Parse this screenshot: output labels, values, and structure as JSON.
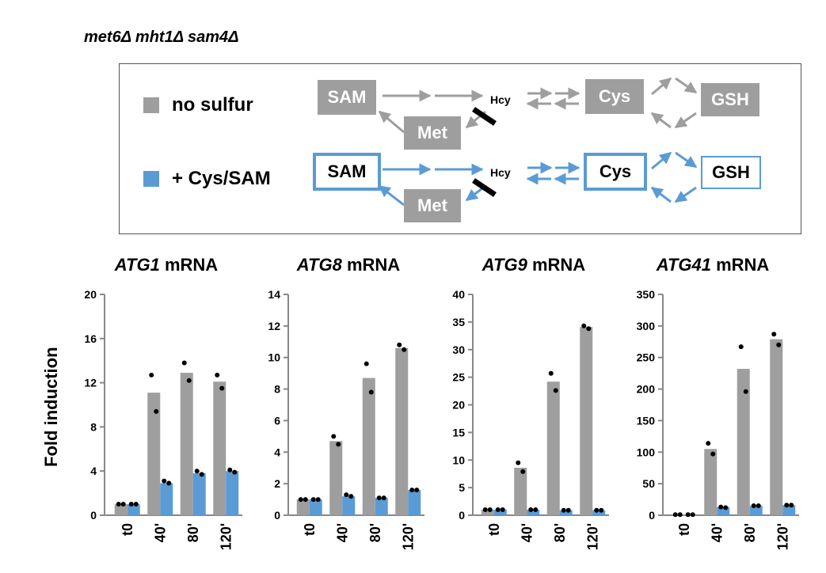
{
  "strain_label": "met6Δ mht1Δ sam4Δ",
  "legend": {
    "items": [
      {
        "label": "no sulfur",
        "color": "#9e9e9e"
      },
      {
        "label": "+ Cys/SAM",
        "color": "#5b9bd5"
      }
    ]
  },
  "pathway": {
    "row1": {
      "sam": "SAM",
      "met": "Met",
      "hcy": "Hcy",
      "cys": "Cys",
      "gsh": "GSH"
    },
    "row2": {
      "sam": "SAM",
      "met": "Met",
      "hcy": "Hcy",
      "cys": "Cys",
      "gsh": "GSH"
    }
  },
  "colors": {
    "grey": "#9e9e9e",
    "blue": "#5b9bd5",
    "axis": "#888888",
    "dot": "#000000"
  },
  "y_axis_label": "Fold induction",
  "chart_data": [
    {
      "type": "bar",
      "title_gene": "ATG1",
      "title_suffix": " mRNA",
      "categories": [
        "t0",
        "40'",
        "80'",
        "120'"
      ],
      "ylim": [
        0,
        20
      ],
      "yticks": [
        0,
        4,
        8,
        12,
        16,
        20
      ],
      "series": [
        {
          "name": "no sulfur",
          "color": "#9e9e9e",
          "values": [
            1,
            11.1,
            12.9,
            12.1
          ],
          "points": [
            [
              1,
              1
            ],
            [
              12.7,
              9.4
            ],
            [
              13.8,
              12.2
            ],
            [
              12.7,
              11.5
            ]
          ]
        },
        {
          "name": "+ Cys/SAM",
          "color": "#5b9bd5",
          "values": [
            1,
            2.9,
            3.8,
            4
          ],
          "points": [
            [
              1,
              1
            ],
            [
              3.1,
              2.9
            ],
            [
              4,
              3.7
            ],
            [
              4.1,
              3.9
            ]
          ]
        }
      ]
    },
    {
      "type": "bar",
      "title_gene": "ATG8",
      "title_suffix": " mRNA",
      "categories": [
        "t0",
        "40'",
        "80'",
        "120'"
      ],
      "ylim": [
        0,
        14
      ],
      "yticks": [
        0,
        2,
        4,
        6,
        8,
        10,
        12,
        14
      ],
      "series": [
        {
          "name": "no sulfur",
          "color": "#9e9e9e",
          "values": [
            1,
            4.7,
            8.7,
            10.6
          ],
          "points": [
            [
              1,
              1
            ],
            [
              5,
              4.5
            ],
            [
              9.6,
              7.8
            ],
            [
              10.8,
              10.5
            ]
          ]
        },
        {
          "name": "+ Cys/SAM",
          "color": "#5b9bd5",
          "values": [
            1,
            1.2,
            1.1,
            1.6
          ],
          "points": [
            [
              1,
              1
            ],
            [
              1.3,
              1.2
            ],
            [
              1.1,
              1.1
            ],
            [
              1.6,
              1.6
            ]
          ]
        }
      ]
    },
    {
      "type": "bar",
      "title_gene": "ATG9",
      "title_suffix": " mRNA",
      "categories": [
        "t0",
        "40'",
        "80'",
        "120'"
      ],
      "ylim": [
        0,
        40
      ],
      "yticks": [
        0,
        5,
        10,
        15,
        20,
        25,
        30,
        35,
        40
      ],
      "series": [
        {
          "name": "no sulfur",
          "color": "#9e9e9e",
          "values": [
            1,
            8.6,
            24.2,
            34.1
          ],
          "points": [
            [
              1,
              1
            ],
            [
              9.5,
              7.9
            ],
            [
              25.7,
              22.6
            ],
            [
              34.3,
              33.8
            ]
          ]
        },
        {
          "name": "+ Cys/SAM",
          "color": "#5b9bd5",
          "values": [
            1,
            1,
            0.9,
            0.9
          ],
          "points": [
            [
              1,
              1
            ],
            [
              1,
              1
            ],
            [
              0.9,
              0.9
            ],
            [
              0.9,
              0.9
            ]
          ]
        }
      ]
    },
    {
      "type": "bar",
      "title_gene": "ATG41",
      "title_suffix": " mRNA",
      "categories": [
        "t0",
        "40'",
        "80'",
        "120'"
      ],
      "ylim": [
        0,
        350
      ],
      "yticks": [
        0,
        50,
        100,
        150,
        200,
        250,
        300,
        350
      ],
      "series": [
        {
          "name": "no sulfur",
          "color": "#9e9e9e",
          "values": [
            1,
            105,
            232,
            279
          ],
          "points": [
            [
              1,
              1
            ],
            [
              114,
              97
            ],
            [
              267,
              196
            ],
            [
              287,
              270
            ]
          ]
        },
        {
          "name": "+ Cys/SAM",
          "color": "#5b9bd5",
          "values": [
            1,
            13,
            15,
            16
          ],
          "points": [
            [
              1,
              1
            ],
            [
              13,
              12
            ],
            [
              15,
              15
            ],
            [
              16,
              16
            ]
          ]
        }
      ]
    }
  ]
}
